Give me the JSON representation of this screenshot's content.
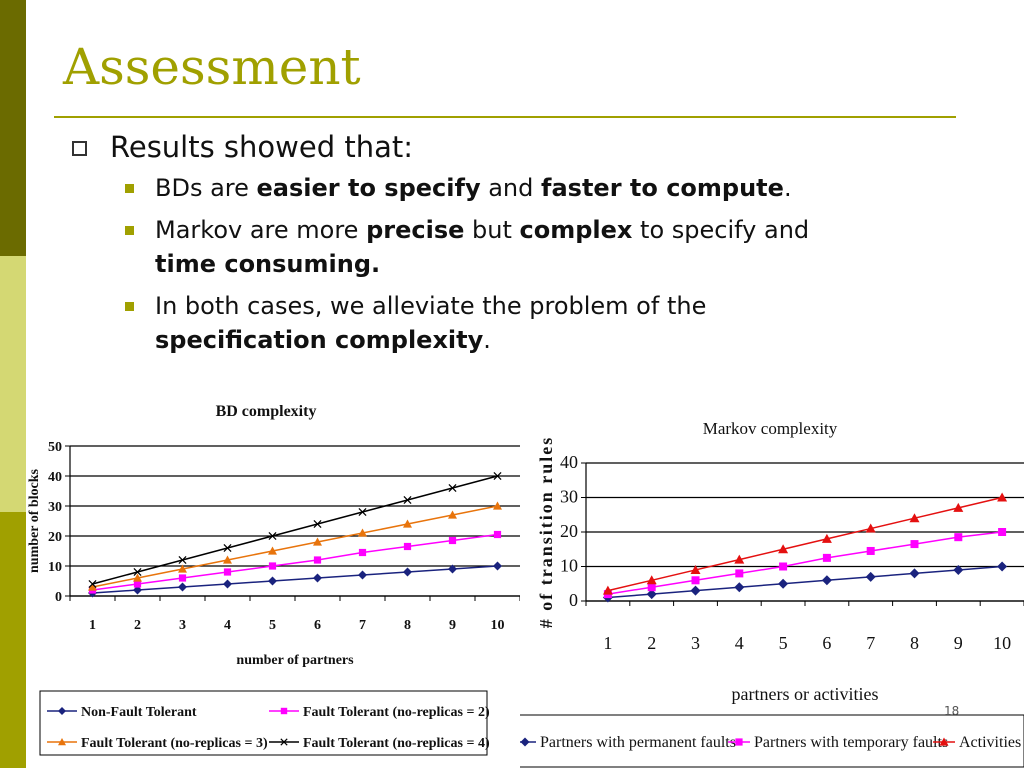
{
  "slide": {
    "title": "Assessment",
    "bullet": "Results showed that:",
    "sub1": {
      "a": "BDs are ",
      "b": "easier to specify",
      "c": " and ",
      "d": "faster to compute",
      "e": "."
    },
    "sub2": {
      "a": "Markov are more ",
      "b": "precise",
      "c": " but ",
      "d": "complex",
      "e": " to specify and",
      "f": "time consuming."
    },
    "sub3": {
      "a": "In both cases, we alleviate the problem of the",
      "b": "specification complexity",
      "c": "."
    },
    "page_number": "18",
    "colors": {
      "accent": "#a0a000",
      "dark_bar": "#6b6b00",
      "light_bar": "#d4d873"
    }
  },
  "chart_data": [
    {
      "type": "line",
      "title": "BD complexity",
      "xlabel": "number of partners",
      "ylabel": "number of blocks",
      "x": [
        1,
        2,
        3,
        4,
        5,
        6,
        7,
        8,
        9,
        10
      ],
      "ylim": [
        0,
        50
      ],
      "yticks": [
        0,
        10,
        20,
        30,
        40,
        50
      ],
      "grid": true,
      "legend": "bottom",
      "series": [
        {
          "name": "Non-Fault Tolerant",
          "values": [
            1,
            2,
            3,
            4,
            5,
            6,
            7,
            8,
            9,
            10
          ],
          "color": "#1a237e",
          "marker": "diamond"
        },
        {
          "name": "Fault Tolerant (no-replicas = 2)",
          "values": [
            2,
            4,
            6,
            8,
            10,
            12,
            14.5,
            16.5,
            18.5,
            20.5
          ],
          "color": "#ff00ff",
          "marker": "square"
        },
        {
          "name": "Fault Tolerant (no-replicas = 3)",
          "values": [
            3,
            6,
            9,
            12,
            15,
            18,
            21,
            24,
            27,
            30
          ],
          "color": "#e8740c",
          "marker": "triangle"
        },
        {
          "name": "Fault Tolerant (no-replicas = 4)",
          "values": [
            4,
            8,
            12,
            16,
            20,
            24,
            28,
            32,
            36,
            40
          ],
          "color": "#000000",
          "marker": "x"
        }
      ]
    },
    {
      "type": "line",
      "title": "Markov complexity",
      "xlabel": "partners or activities",
      "ylabel": "# of transition rules",
      "x": [
        1,
        2,
        3,
        4,
        5,
        6,
        7,
        8,
        9,
        10
      ],
      "ylim": [
        0,
        40
      ],
      "yticks": [
        0,
        10,
        20,
        30,
        40
      ],
      "grid": true,
      "legend": "bottom",
      "series": [
        {
          "name": "Partners with permanent faults",
          "values": [
            1,
            2,
            3,
            4,
            5,
            6,
            7,
            8,
            9,
            10
          ],
          "color": "#1a237e",
          "marker": "diamond"
        },
        {
          "name": "Partners with temporary faults",
          "values": [
            2,
            4,
            6,
            8,
            10,
            12.5,
            14.5,
            16.5,
            18.5,
            20
          ],
          "color": "#ff00ff",
          "marker": "square"
        },
        {
          "name": "Activities",
          "values": [
            3,
            6,
            9,
            12,
            15,
            18,
            21,
            24,
            27,
            30
          ],
          "color": "#e41010",
          "marker": "triangle"
        }
      ]
    }
  ]
}
